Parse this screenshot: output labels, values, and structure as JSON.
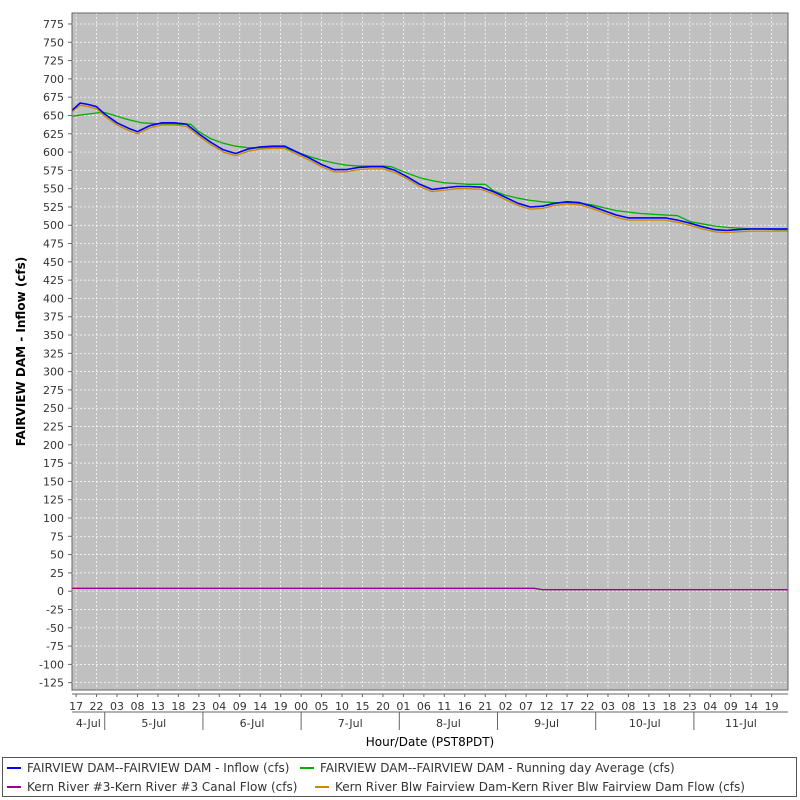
{
  "chart_data": {
    "type": "line",
    "title": "",
    "xlabel": "Hour/Date (PST8PDT)",
    "ylabel": "FAIRVIEW DAM - Inflow (cfs)",
    "ylim": [
      -135,
      790
    ],
    "xlim": [
      "2024-07-04 16:00",
      "2024-07-11 23:00"
    ],
    "y_ticks": [
      -125,
      -100,
      -75,
      -50,
      -25,
      0,
      25,
      50,
      75,
      100,
      125,
      150,
      175,
      200,
      225,
      250,
      275,
      300,
      325,
      350,
      375,
      400,
      425,
      450,
      475,
      500,
      525,
      550,
      575,
      600,
      625,
      650,
      675,
      700,
      725,
      750,
      775
    ],
    "x_hour_ticks": [
      {
        "t": "2024-07-04 17:00",
        "label": "17"
      },
      {
        "t": "2024-07-04 22:00",
        "label": "22"
      },
      {
        "t": "2024-07-05 03:00",
        "label": "03"
      },
      {
        "t": "2024-07-05 08:00",
        "label": "08"
      },
      {
        "t": "2024-07-05 13:00",
        "label": "13"
      },
      {
        "t": "2024-07-05 18:00",
        "label": "18"
      },
      {
        "t": "2024-07-05 23:00",
        "label": "23"
      },
      {
        "t": "2024-07-06 04:00",
        "label": "04"
      },
      {
        "t": "2024-07-06 09:00",
        "label": "09"
      },
      {
        "t": "2024-07-06 14:00",
        "label": "14"
      },
      {
        "t": "2024-07-06 19:00",
        "label": "19"
      },
      {
        "t": "2024-07-07 00:00",
        "label": "00"
      },
      {
        "t": "2024-07-07 05:00",
        "label": "05"
      },
      {
        "t": "2024-07-07 10:00",
        "label": "10"
      },
      {
        "t": "2024-07-07 15:00",
        "label": "15"
      },
      {
        "t": "2024-07-07 20:00",
        "label": "20"
      },
      {
        "t": "2024-07-08 01:00",
        "label": "01"
      },
      {
        "t": "2024-07-08 06:00",
        "label": "06"
      },
      {
        "t": "2024-07-08 11:00",
        "label": "11"
      },
      {
        "t": "2024-07-08 16:00",
        "label": "16"
      },
      {
        "t": "2024-07-08 21:00",
        "label": "21"
      },
      {
        "t": "2024-07-09 02:00",
        "label": "02"
      },
      {
        "t": "2024-07-09 07:00",
        "label": "07"
      },
      {
        "t": "2024-07-09 12:00",
        "label": "12"
      },
      {
        "t": "2024-07-09 17:00",
        "label": "17"
      },
      {
        "t": "2024-07-09 22:00",
        "label": "22"
      },
      {
        "t": "2024-07-10 03:00",
        "label": "03"
      },
      {
        "t": "2024-07-10 08:00",
        "label": "08"
      },
      {
        "t": "2024-07-10 13:00",
        "label": "13"
      },
      {
        "t": "2024-07-10 18:00",
        "label": "18"
      },
      {
        "t": "2024-07-10 23:00",
        "label": "23"
      },
      {
        "t": "2024-07-11 04:00",
        "label": "04"
      },
      {
        "t": "2024-07-11 09:00",
        "label": "09"
      },
      {
        "t": "2024-07-11 14:00",
        "label": "14"
      },
      {
        "t": "2024-07-11 19:00",
        "label": "19"
      }
    ],
    "x_day_labels": [
      {
        "label": "4-Jul",
        "from": "2024-07-04 16:00",
        "to": "2024-07-05 00:00"
      },
      {
        "label": "5-Jul",
        "from": "2024-07-05 00:00",
        "to": "2024-07-06 00:00"
      },
      {
        "label": "6-Jul",
        "from": "2024-07-06 00:00",
        "to": "2024-07-07 00:00"
      },
      {
        "label": "7-Jul",
        "from": "2024-07-07 00:00",
        "to": "2024-07-08 00:00"
      },
      {
        "label": "8-Jul",
        "from": "2024-07-08 00:00",
        "to": "2024-07-09 00:00"
      },
      {
        "label": "9-Jul",
        "from": "2024-07-09 00:00",
        "to": "2024-07-10 00:00"
      },
      {
        "label": "10-Jul",
        "from": "2024-07-10 00:00",
        "to": "2024-07-11 00:00"
      },
      {
        "label": "11-Jul",
        "from": "2024-07-11 00:00",
        "to": "2024-07-11 23:00"
      }
    ],
    "grid": true,
    "legend_position": "bottom",
    "background": "#c0c0c0",
    "series": [
      {
        "name": "FAIRVIEW DAM--FAIRVIEW DAM - Inflow  (cfs)",
        "color": "#0000ff",
        "points": [
          [
            "2024-07-04 16:00",
            657
          ],
          [
            "2024-07-04 18:00",
            667
          ],
          [
            "2024-07-04 20:00",
            665
          ],
          [
            "2024-07-04 22:00",
            662
          ],
          [
            "2024-07-05 00:00",
            652
          ],
          [
            "2024-07-05 03:00",
            640
          ],
          [
            "2024-07-05 06:00",
            632
          ],
          [
            "2024-07-05 08:00",
            628
          ],
          [
            "2024-07-05 11:00",
            636
          ],
          [
            "2024-07-05 14:00",
            640
          ],
          [
            "2024-07-05 17:00",
            640
          ],
          [
            "2024-07-05 20:00",
            638
          ],
          [
            "2024-07-05 23:00",
            625
          ],
          [
            "2024-07-06 02:00",
            613
          ],
          [
            "2024-07-06 05:00",
            603
          ],
          [
            "2024-07-06 08:00",
            598
          ],
          [
            "2024-07-06 11:00",
            604
          ],
          [
            "2024-07-06 14:00",
            607
          ],
          [
            "2024-07-06 17:00",
            608
          ],
          [
            "2024-07-06 20:00",
            608
          ],
          [
            "2024-07-06 23:00",
            600
          ],
          [
            "2024-07-07 02:00",
            592
          ],
          [
            "2024-07-07 05:00",
            583
          ],
          [
            "2024-07-07 08:00",
            576
          ],
          [
            "2024-07-07 11:00",
            576
          ],
          [
            "2024-07-07 14:00",
            579
          ],
          [
            "2024-07-07 17:00",
            580
          ],
          [
            "2024-07-07 20:00",
            580
          ],
          [
            "2024-07-07 23:00",
            575
          ],
          [
            "2024-07-08 02:00",
            566
          ],
          [
            "2024-07-08 05:00",
            556
          ],
          [
            "2024-07-08 08:00",
            549
          ],
          [
            "2024-07-08 11:00",
            551
          ],
          [
            "2024-07-08 14:00",
            553
          ],
          [
            "2024-07-08 17:00",
            553
          ],
          [
            "2024-07-08 20:00",
            552
          ],
          [
            "2024-07-08 23:00",
            546
          ],
          [
            "2024-07-09 02:00",
            538
          ],
          [
            "2024-07-09 05:00",
            530
          ],
          [
            "2024-07-09 08:00",
            525
          ],
          [
            "2024-07-09 11:00",
            526
          ],
          [
            "2024-07-09 14:00",
            530
          ],
          [
            "2024-07-09 17:00",
            532
          ],
          [
            "2024-07-09 20:00",
            531
          ],
          [
            "2024-07-09 23:00",
            526
          ],
          [
            "2024-07-10 02:00",
            520
          ],
          [
            "2024-07-10 05:00",
            514
          ],
          [
            "2024-07-10 08:00",
            510
          ],
          [
            "2024-07-10 11:00",
            510
          ],
          [
            "2024-07-10 14:00",
            510
          ],
          [
            "2024-07-10 17:00",
            510
          ],
          [
            "2024-07-10 20:00",
            507
          ],
          [
            "2024-07-10 23:00",
            503
          ],
          [
            "2024-07-11 02:00",
            498
          ],
          [
            "2024-07-11 05:00",
            494
          ],
          [
            "2024-07-11 08:00",
            493
          ],
          [
            "2024-07-11 11:00",
            494
          ],
          [
            "2024-07-11 14:00",
            495
          ],
          [
            "2024-07-11 17:00",
            495
          ],
          [
            "2024-07-11 20:00",
            495
          ],
          [
            "2024-07-11 23:00",
            495
          ]
        ]
      },
      {
        "name": "FAIRVIEW DAM--FAIRVIEW DAM - Running day Average  (cfs)",
        "color": "#00b000",
        "points": [
          [
            "2024-07-04 16:00",
            649
          ],
          [
            "2024-07-04 20:00",
            652
          ],
          [
            "2024-07-04 23:00",
            654
          ],
          [
            "2024-07-05 00:00",
            654
          ],
          [
            "2024-07-05 03:00",
            649
          ],
          [
            "2024-07-05 06:00",
            644
          ],
          [
            "2024-07-05 09:00",
            640
          ],
          [
            "2024-07-05 12:00",
            639
          ],
          [
            "2024-07-05 15:00",
            638
          ],
          [
            "2024-07-05 18:00",
            638
          ],
          [
            "2024-07-05 21:00",
            638
          ],
          [
            "2024-07-05 23:00",
            628
          ],
          [
            "2024-07-06 02:00",
            618
          ],
          [
            "2024-07-06 05:00",
            612
          ],
          [
            "2024-07-06 08:00",
            608
          ],
          [
            "2024-07-06 11:00",
            606
          ],
          [
            "2024-07-06 14:00",
            606
          ],
          [
            "2024-07-06 17:00",
            606
          ],
          [
            "2024-07-06 20:00",
            606
          ],
          [
            "2024-07-06 23:00",
            600
          ],
          [
            "2024-07-07 02:00",
            594
          ],
          [
            "2024-07-07 05:00",
            589
          ],
          [
            "2024-07-07 08:00",
            585
          ],
          [
            "2024-07-07 11:00",
            582
          ],
          [
            "2024-07-07 14:00",
            581
          ],
          [
            "2024-07-07 17:00",
            581
          ],
          [
            "2024-07-07 20:00",
            581
          ],
          [
            "2024-07-07 22:00",
            580
          ],
          [
            "2024-07-08 02:00",
            571
          ],
          [
            "2024-07-08 05:00",
            565
          ],
          [
            "2024-07-08 08:00",
            561
          ],
          [
            "2024-07-08 11:00",
            558
          ],
          [
            "2024-07-08 14:00",
            557
          ],
          [
            "2024-07-08 17:00",
            556
          ],
          [
            "2024-07-08 20:00",
            556
          ],
          [
            "2024-07-08 21:00",
            556
          ],
          [
            "2024-07-08 23:00",
            547
          ],
          [
            "2024-07-09 02:00",
            541
          ],
          [
            "2024-07-09 05:00",
            537
          ],
          [
            "2024-07-09 08:00",
            534
          ],
          [
            "2024-07-09 11:00",
            532
          ],
          [
            "2024-07-09 14:00",
            531
          ],
          [
            "2024-07-09 17:00",
            531
          ],
          [
            "2024-07-09 20:00",
            530
          ],
          [
            "2024-07-09 23:00",
            528
          ],
          [
            "2024-07-10 02:00",
            524
          ],
          [
            "2024-07-10 05:00",
            520
          ],
          [
            "2024-07-10 08:00",
            518
          ],
          [
            "2024-07-10 11:00",
            516
          ],
          [
            "2024-07-10 14:00",
            515
          ],
          [
            "2024-07-10 17:00",
            514
          ],
          [
            "2024-07-10 20:00",
            513
          ],
          [
            "2024-07-10 23:00",
            505
          ],
          [
            "2024-07-11 02:00",
            502
          ],
          [
            "2024-07-11 05:00",
            499
          ],
          [
            "2024-07-11 08:00",
            497
          ],
          [
            "2024-07-11 11:00",
            496
          ],
          [
            "2024-07-11 14:00",
            495
          ],
          [
            "2024-07-11 17:00",
            495
          ],
          [
            "2024-07-11 20:00",
            494
          ],
          [
            "2024-07-11 23:00",
            494
          ]
        ]
      },
      {
        "name": "Kern River #3-Kern River #3 Canal Flow  (cfs)",
        "color": "#990099",
        "points": [
          [
            "2024-07-04 16:00",
            4
          ],
          [
            "2024-07-09 09:00",
            4
          ],
          [
            "2024-07-09 11:00",
            2
          ],
          [
            "2024-07-11 23:00",
            2
          ]
        ]
      },
      {
        "name": "Kern River Blw Fairview Dam-Kern River Blw Fairview Dam Flow  (cfs)",
        "color": "#cc8800",
        "points": [
          [
            "2024-07-04 16:00",
            655
          ],
          [
            "2024-07-04 18:00",
            664
          ],
          [
            "2024-07-04 20:00",
            662
          ],
          [
            "2024-07-04 22:00",
            659
          ],
          [
            "2024-07-05 00:00",
            649
          ],
          [
            "2024-07-05 03:00",
            637
          ],
          [
            "2024-07-05 06:00",
            629
          ],
          [
            "2024-07-05 08:00",
            625
          ],
          [
            "2024-07-05 11:00",
            633
          ],
          [
            "2024-07-05 14:00",
            637
          ],
          [
            "2024-07-05 17:00",
            637
          ],
          [
            "2024-07-05 20:00",
            635
          ],
          [
            "2024-07-05 23:00",
            622
          ],
          [
            "2024-07-06 02:00",
            610
          ],
          [
            "2024-07-06 05:00",
            600
          ],
          [
            "2024-07-06 08:00",
            595
          ],
          [
            "2024-07-06 11:00",
            601
          ],
          [
            "2024-07-06 14:00",
            604
          ],
          [
            "2024-07-06 17:00",
            605
          ],
          [
            "2024-07-06 20:00",
            605
          ],
          [
            "2024-07-06 23:00",
            597
          ],
          [
            "2024-07-07 02:00",
            589
          ],
          [
            "2024-07-07 05:00",
            580
          ],
          [
            "2024-07-07 08:00",
            573
          ],
          [
            "2024-07-07 11:00",
            573
          ],
          [
            "2024-07-07 14:00",
            576
          ],
          [
            "2024-07-07 17:00",
            577
          ],
          [
            "2024-07-07 20:00",
            577
          ],
          [
            "2024-07-07 23:00",
            572
          ],
          [
            "2024-07-08 02:00",
            563
          ],
          [
            "2024-07-08 05:00",
            553
          ],
          [
            "2024-07-08 08:00",
            546
          ],
          [
            "2024-07-08 11:00",
            548
          ],
          [
            "2024-07-08 14:00",
            550
          ],
          [
            "2024-07-08 17:00",
            550
          ],
          [
            "2024-07-08 20:00",
            549
          ],
          [
            "2024-07-08 23:00",
            543
          ],
          [
            "2024-07-09 02:00",
            535
          ],
          [
            "2024-07-09 05:00",
            527
          ],
          [
            "2024-07-09 08:00",
            522
          ],
          [
            "2024-07-09 11:00",
            523
          ],
          [
            "2024-07-09 14:00",
            527
          ],
          [
            "2024-07-09 17:00",
            529
          ],
          [
            "2024-07-09 20:00",
            528
          ],
          [
            "2024-07-09 23:00",
            523
          ],
          [
            "2024-07-10 02:00",
            517
          ],
          [
            "2024-07-10 05:00",
            511
          ],
          [
            "2024-07-10 08:00",
            507
          ],
          [
            "2024-07-10 11:00",
            507
          ],
          [
            "2024-07-10 14:00",
            507
          ],
          [
            "2024-07-10 17:00",
            507
          ],
          [
            "2024-07-10 20:00",
            504
          ],
          [
            "2024-07-10 23:00",
            500
          ],
          [
            "2024-07-11 02:00",
            495
          ],
          [
            "2024-07-11 05:00",
            491
          ],
          [
            "2024-07-11 08:00",
            490
          ],
          [
            "2024-07-11 11:00",
            491
          ],
          [
            "2024-07-11 14:00",
            492
          ],
          [
            "2024-07-11 17:00",
            492
          ],
          [
            "2024-07-11 20:00",
            492
          ],
          [
            "2024-07-11 23:00",
            492
          ]
        ]
      }
    ]
  }
}
